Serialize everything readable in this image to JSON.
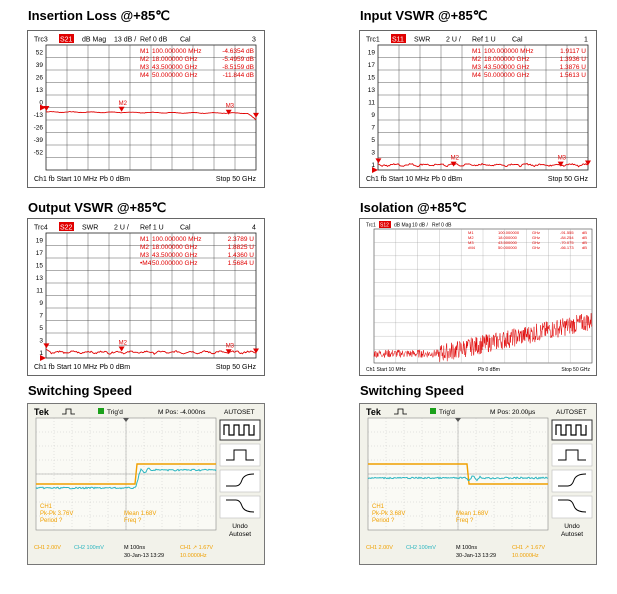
{
  "titles": [
    "Insertion Loss @+85℃",
    "Input VSWR @+85℃",
    "Output VSWR @+85℃",
    "Isolation @+85℃",
    "Switching Speed",
    "Switching Speed"
  ],
  "vna": [
    {
      "id": "il",
      "header": [
        "Trc3",
        "S21",
        "dB Mag",
        "13 dB /",
        "Ref 0 dB",
        "Cal",
        "3"
      ],
      "y_ticks": [
        "52",
        "39",
        "26",
        "13",
        "0",
        "-13",
        "-26",
        "-39",
        "-52"
      ],
      "y_first": "52",
      "ref_index": 4,
      "markers": [
        [
          "M1",
          "100.000000 MHz",
          "-4.6354 dB"
        ],
        [
          "M2",
          "18.000000 GHz",
          "-5.4959 dB"
        ],
        [
          "M3",
          "43.500000 GHz",
          "-8.5159 dB"
        ],
        [
          "M4",
          "50.000000 GHz",
          "-11.844 dB"
        ]
      ],
      "footer_left": "Ch1  fb  Start  10 MHz      Pb  0 dBm",
      "footer_right": "Stop  50 GHz"
    },
    {
      "id": "ivswr",
      "header": [
        "Trc1",
        "S11",
        "SWR",
        "2 U /",
        "Ref 1 U",
        "Cal",
        "1"
      ],
      "y_ticks": [
        "19",
        "17",
        "15",
        "13",
        "11",
        "9",
        "7",
        "5",
        "3",
        "1"
      ],
      "markers": [
        [
          "M1",
          "100.000000 MHz",
          "1.9117 U"
        ],
        [
          "M2",
          "18.000000 GHz",
          "1.3936 U"
        ],
        [
          "M3",
          "43.500000 GHz",
          "1.3876 U"
        ],
        [
          "M4",
          "50.000000 GHz",
          "1.5613 U"
        ]
      ],
      "footer_left": "Ch1  fb  Start  10 MHz      Pb  0 dBm",
      "footer_right": "Stop  50 GHz"
    },
    {
      "id": "ovswr",
      "header": [
        "Trc4",
        "S22",
        "SWR",
        "2 U /",
        "Ref 1 U",
        "Cal",
        "4"
      ],
      "y_ticks": [
        "19",
        "17",
        "15",
        "13",
        "11",
        "9",
        "7",
        "5",
        "3",
        "1"
      ],
      "markers": [
        [
          "M1",
          "100.000000 MHz",
          "2.3789 U"
        ],
        [
          "M2",
          "18.000000 GHz",
          "1.8825 U"
        ],
        [
          "M3",
          "43.500000 GHz",
          "1.4360 U"
        ],
        [
          "•M4",
          "50.000000 GHz",
          "1.5684 U"
        ]
      ],
      "footer_left": "Ch1  fb  Start  10 MHz      Pb  0 dBm",
      "footer_right": "Stop  50 GHz"
    }
  ],
  "chart_data": [
    {
      "type": "line",
      "title": "Insertion Loss @+85℃",
      "xlabel": "Frequency",
      "ylabel": "dB",
      "xlim": [
        0.01,
        50
      ],
      "ylim": [
        -65,
        65
      ],
      "series": [
        {
          "name": "S21",
          "x": [
            0.1,
            18,
            43.5,
            50
          ],
          "y": [
            -4.64,
            -5.5,
            -8.52,
            -11.84
          ]
        }
      ]
    },
    {
      "type": "line",
      "title": "Input VSWR @+85℃",
      "xlabel": "Frequency",
      "ylabel": "SWR",
      "xlim": [
        0.01,
        50
      ],
      "ylim": [
        1,
        21
      ],
      "series": [
        {
          "name": "S11",
          "x": [
            0.1,
            18,
            43.5,
            50
          ],
          "y": [
            1.91,
            1.39,
            1.39,
            1.56
          ]
        }
      ]
    },
    {
      "type": "line",
      "title": "Output VSWR @+85℃",
      "xlabel": "Frequency",
      "ylabel": "SWR",
      "xlim": [
        0.01,
        50
      ],
      "ylim": [
        1,
        21
      ],
      "series": [
        {
          "name": "S22",
          "x": [
            0.1,
            18,
            43.5,
            50
          ],
          "y": [
            2.38,
            1.88,
            1.44,
            1.57
          ]
        }
      ]
    },
    {
      "type": "line",
      "title": "Isolation @+85℃",
      "xlabel": "Frequency",
      "ylabel": "dB",
      "xlim": [
        0.01,
        50
      ],
      "ylim": [
        -100,
        0
      ],
      "series": [
        {
          "name": "S12",
          "x": [
            0,
            10,
            20,
            30,
            40,
            50
          ],
          "y": [
            -92,
            -90,
            -88,
            -78,
            -72,
            -67
          ]
        }
      ]
    }
  ],
  "isolation": {
    "header": [
      "Trc1",
      "S12",
      "dB Mag",
      "10 dB /",
      "Ref 0 dB"
    ],
    "markers": [
      [
        "M1",
        "100.000000",
        "GHz",
        "-91.555",
        "dB"
      ],
      [
        "M2",
        "18.000000",
        "GHz",
        "-84.254",
        "dB"
      ],
      [
        "M3",
        "43.500000",
        "GHz",
        "-70.075",
        "dB"
      ],
      [
        "•M4",
        "50.000000",
        "GHz",
        "-66.173",
        "dB"
      ]
    ],
    "footer_left": "Ch1  Start  10 MHz",
    "footer_mid": "Pb  0 dBm",
    "footer_right": "Stop  50 GHz"
  },
  "scopes": [
    {
      "brand": "Tek",
      "trig": "Trig'd",
      "mpos": "M Pos: -4.000ns",
      "autoset": "AUTOSET",
      "meas_ch": "CH1",
      "pkpk": "Pk-Pk 3.76V",
      "period": "Period ?",
      "mean": "Mean 1.68V",
      "freq": "Freq ?",
      "bottom": [
        "CH1  2.00V",
        "CH2  100mV",
        "M 100ns",
        "CH1 ↗ 1.67V"
      ],
      "date": "30-Jan-13 13:29",
      "freq_readout": "10.0000Hz",
      "undo": "Undo",
      "autoset2": "Autoset",
      "edge": "rise"
    },
    {
      "brand": "Tek",
      "trig": "Trig'd",
      "mpos": "M Pos: 20.00μs",
      "autoset": "AUTOSET",
      "meas_ch": "CH1",
      "pkpk": "Pk-Pk 3.68V",
      "period": "Period ?",
      "mean": "Mean 1.68V",
      "freq": "Freq ?",
      "bottom": [
        "CH1  2.00V",
        "CH2  100mV",
        "M 100ns",
        "CH1 ↗ 1.67V"
      ],
      "date": "30-Jan-13 13:29",
      "freq_readout": "10.0000Hz",
      "undo": "Undo",
      "autoset2": "Autoset",
      "edge": "fall"
    }
  ],
  "marker_labels": [
    "M1",
    "M2",
    "M3",
    "M4"
  ],
  "colors": {
    "trace": "#e00000",
    "grid": "#222",
    "scope_yellow": "#f0a000",
    "scope_cyan": "#2bb5c0",
    "scope_grid": "#9a9a9a"
  }
}
